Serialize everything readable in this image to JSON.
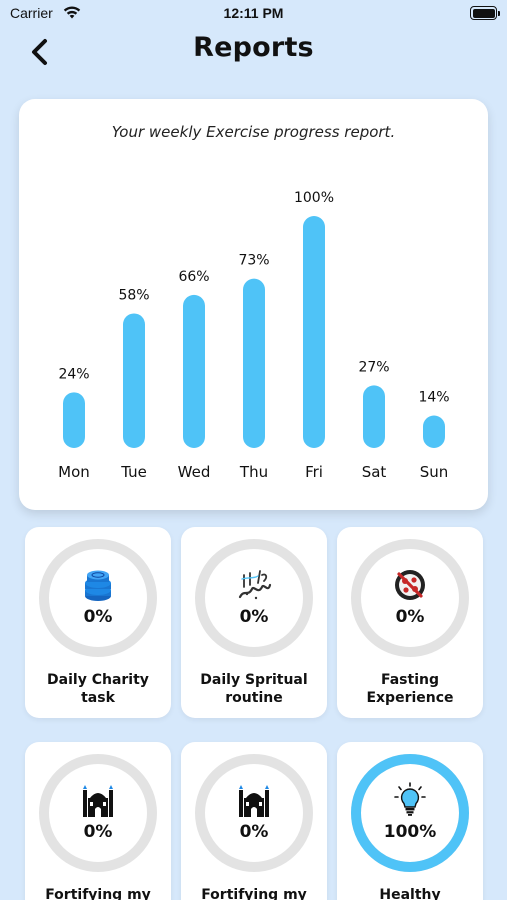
{
  "status_bar": {
    "carrier": "Carrier",
    "time": "12:11 PM"
  },
  "header": {
    "title": "Reports",
    "back_icon": "chevron-left-icon"
  },
  "chart_data": {
    "type": "bar",
    "title": "Your weekly Exercise progress report.",
    "categories": [
      "Mon",
      "Tue",
      "Wed",
      "Thu",
      "Fri",
      "Sat",
      "Sun"
    ],
    "values": [
      24,
      58,
      66,
      73,
      100,
      27,
      14
    ],
    "value_labels": [
      "24%",
      "58%",
      "66%",
      "73%",
      "100%",
      "27%",
      "14%"
    ],
    "ylim": [
      0,
      100
    ],
    "grid": false,
    "bar_color": "#4fc3f7"
  },
  "tasks": [
    {
      "label": "Daily Charity task",
      "percent": "0%",
      "progress": 0,
      "icon": "coins-icon"
    },
    {
      "label": "Daily Spritual routine",
      "percent": "0%",
      "progress": 0,
      "icon": "calligraphy-icon"
    },
    {
      "label": "Fasting Experience",
      "percent": "0%",
      "progress": 0,
      "icon": "no-food-icon"
    },
    {
      "label": "Fortifying my",
      "percent": "0%",
      "progress": 0,
      "icon": "mosque-icon"
    },
    {
      "label": "Fortifying my",
      "percent": "0%",
      "progress": 0,
      "icon": "mosque-icon"
    },
    {
      "label": "Healthy",
      "percent": "100%",
      "progress": 1,
      "icon": "lightbulb-icon"
    }
  ],
  "colors": {
    "accent": "#4fc3f7",
    "ring_track": "#e3e3e3",
    "background": "#d6e8fb"
  }
}
